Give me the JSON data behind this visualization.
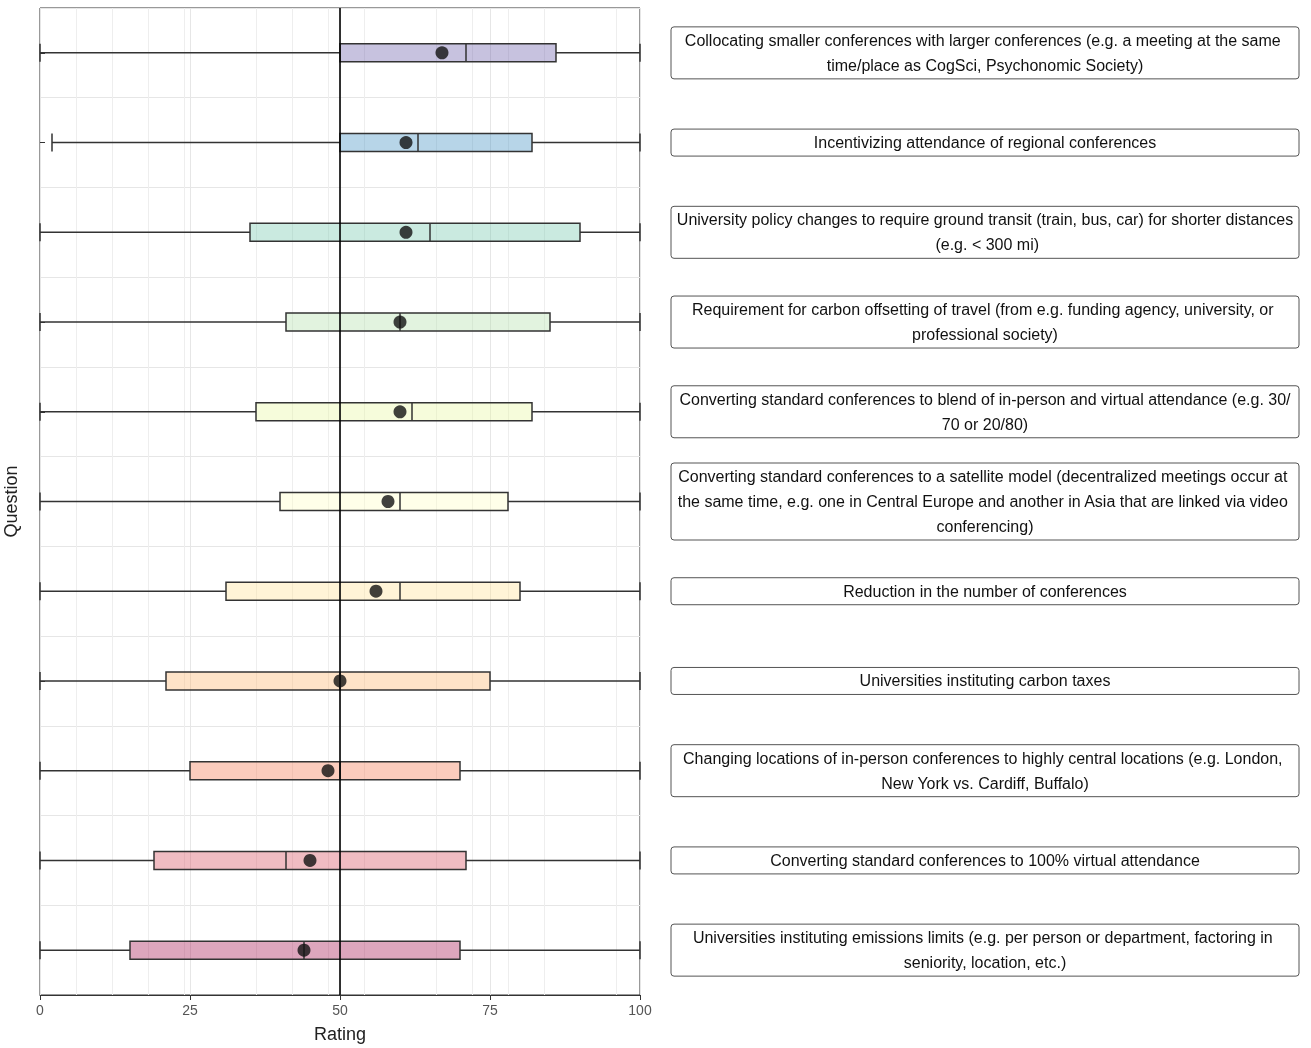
{
  "chart_data": {
    "type": "box",
    "orientation": "horizontal",
    "xlabel": "Rating",
    "ylabel": "Question",
    "categories": [
      "Collocating smaller conferences with larger conferences (e.g. a meeting at the same time/place as CogSci, Psychonomic Society)",
      "Incentivizing attendance of regional conferences",
      "University policy changes to require ground transit (train, bus, car) for shorter distances (e.g. < 300 mi)",
      "Requirement for carbon offsetting of travel (from e.g. funding agency, university, or professional society)",
      "Converting standard conferences to blend of in-person and virtual attendance (e.g. 30/70 or 20/80)",
      "Converting standard conferences to a satellite model (decentralized meetings occur at the same time, e.g. one in Central Europe and another in Asia that are linked via video conferencing)",
      "Reduction in the number of conferences",
      "Universities instituting carbon taxes",
      "Changing locations of in-person conferences to highly central locations (e.g. London, New York vs. Cardiff, Buffalo)",
      "Converting standard conferences to 100% virtual attendance",
      "Universities instituting emissions limits (e.g. per person or department, factoring in seniority, location, etc.)"
    ],
    "boxes": [
      {
        "low": 0,
        "q1": 50,
        "median": 71,
        "q3": 86,
        "high": 100,
        "mean": 67
      },
      {
        "low": 2,
        "q1": 50,
        "median": 63,
        "q3": 82,
        "high": 100,
        "mean": 61
      },
      {
        "low": 0,
        "q1": 35,
        "median": 65,
        "q3": 90,
        "high": 100,
        "mean": 61
      },
      {
        "low": 0,
        "q1": 41,
        "median": 60,
        "q3": 85,
        "high": 100,
        "mean": 60
      },
      {
        "low": 0,
        "q1": 36,
        "median": 62,
        "q3": 82,
        "high": 100,
        "mean": 60
      },
      {
        "low": 0,
        "q1": 40,
        "median": 60,
        "q3": 78,
        "high": 100,
        "mean": 58
      },
      {
        "low": 0,
        "q1": 31,
        "median": 60,
        "q3": 80,
        "high": 100,
        "mean": 56
      },
      {
        "low": 0,
        "q1": 21,
        "median": 50,
        "q3": 75,
        "high": 100,
        "mean": 50
      },
      {
        "low": 0,
        "q1": 25,
        "median": 50,
        "q3": 70,
        "high": 100,
        "mean": 48
      },
      {
        "low": 0,
        "q1": 19,
        "median": 41,
        "q3": 71,
        "high": 100,
        "mean": 45
      },
      {
        "low": 0,
        "q1": 15,
        "median": 44,
        "q3": 70,
        "high": 100,
        "mean": 44
      }
    ],
    "colors": [
      "#5e4fa2",
      "#3288bd",
      "#66c2a5",
      "#abdda4",
      "#e6f598",
      "#ffffbf",
      "#fee08b",
      "#fdae61",
      "#f46d43",
      "#d53e4f",
      "#9e0142"
    ],
    "xlim": [
      0,
      100
    ],
    "xticks": [
      0,
      25,
      50,
      75,
      100
    ],
    "ref_lines": [
      {
        "axis": "x",
        "value": 50,
        "color": "#000000"
      }
    ],
    "grid": true
  }
}
